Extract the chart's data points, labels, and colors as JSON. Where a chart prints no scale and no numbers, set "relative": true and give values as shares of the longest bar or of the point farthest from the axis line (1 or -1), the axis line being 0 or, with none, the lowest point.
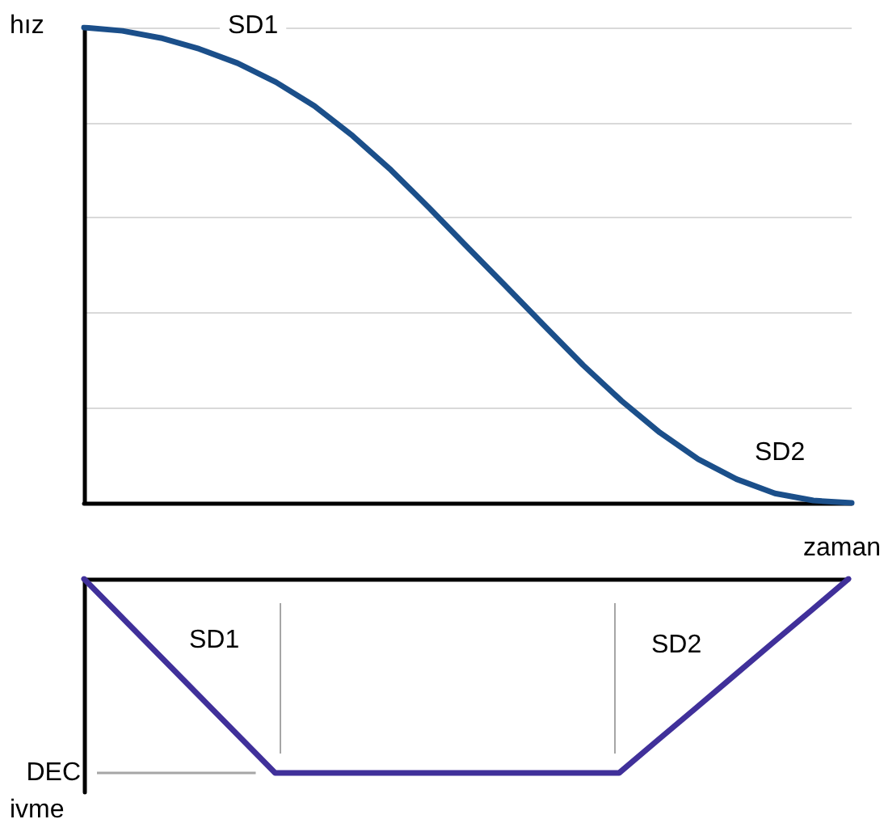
{
  "chart_data": [
    {
      "type": "line",
      "relative": true,
      "ylabel": "hız",
      "annotations": [
        "SD1",
        "SD2"
      ],
      "grid": "y",
      "line_style": "solid",
      "categories": [
        null,
        null,
        null,
        null,
        null,
        null,
        null,
        null,
        null,
        null,
        null,
        null,
        null,
        null,
        null,
        null,
        null,
        null,
        null,
        null,
        null
      ],
      "series": [
        {
          "color": "#1b4f8a",
          "values": [
            1.0,
            0.993,
            0.978,
            0.955,
            0.925,
            0.885,
            0.835,
            0.772,
            0.7,
            0.62,
            0.537,
            0.455,
            0.372,
            0.29,
            0.215,
            0.148,
            0.092,
            0.05,
            0.02,
            0.005,
            0.0
          ]
        }
      ]
    },
    {
      "type": "line",
      "relative": true,
      "xlabel": "zaman",
      "ylabel": "ivme",
      "annotations": [
        "SD1",
        "SD2"
      ],
      "line_style": "solid",
      "categories": [
        null,
        null,
        null,
        null,
        null,
        null,
        null,
        null,
        null,
        null,
        null,
        null,
        null,
        null,
        null,
        null,
        null,
        null,
        null,
        null,
        null
      ],
      "series": [
        {
          "color": "#40309a",
          "values": [
            0,
            -0.2,
            -0.4,
            -0.6,
            -0.8,
            -1,
            -1,
            -1,
            -1,
            -1,
            -1,
            -1,
            -1,
            -1,
            -1,
            -0.833,
            -0.667,
            -0.5,
            -0.333,
            -0.167,
            0
          ]
        }
      ],
      "ref_lines": [
        {
          "axis": "y",
          "value": -1,
          "label": "DEC",
          "color": "#a6a6a6"
        }
      ]
    }
  ]
}
